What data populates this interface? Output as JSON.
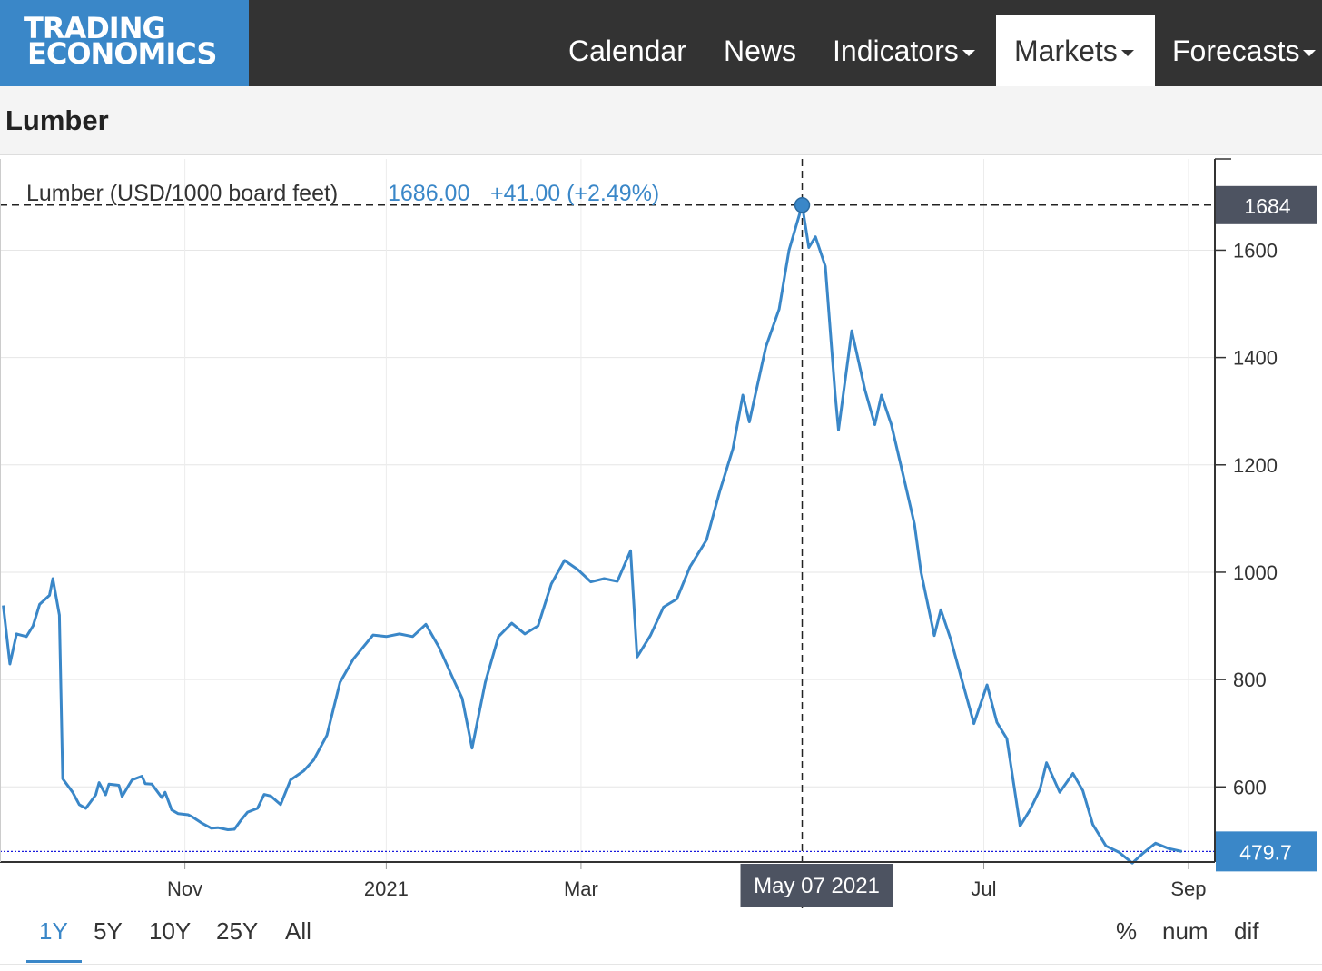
{
  "nav": {
    "logo_line1": "TRADING",
    "logo_line2": "ECONOMICS",
    "items": [
      {
        "label": "Calendar"
      },
      {
        "label": "News"
      },
      {
        "label": "Indicators"
      },
      {
        "label": "Markets"
      },
      {
        "label": "Forecasts"
      }
    ]
  },
  "page": {
    "title": "Lumber"
  },
  "tooltip": {
    "series_label": "Lumber (USD/1000 board feet)",
    "value": "1686.00",
    "change": "+41.00 (+2.49%)",
    "date": "May 07 2021",
    "crosshair_value": "1684",
    "last_value": "479.7"
  },
  "ranges": [
    "1Y",
    "5Y",
    "10Y",
    "25Y",
    "All"
  ],
  "active_range": "1Y",
  "modes": [
    "%",
    "num",
    "dif"
  ],
  "colors": {
    "line": "#3a87c8",
    "nav_bg": "#333333",
    "logo_bg": "#3a87c8",
    "crosshair_label_bg": "#4d5361",
    "last_label_bg": "#3a87c8"
  },
  "chart_data": {
    "type": "line",
    "x_tick_labels": [
      "Nov",
      "2021",
      "Mar",
      "Jul",
      "Sep"
    ],
    "x_ticks": [
      "2020-11-01",
      "2021-01-01",
      "2021-03-01",
      "2021-07-01",
      "2021-09-01"
    ],
    "y_ticks": [
      600,
      800,
      1000,
      1200,
      1400,
      1600
    ],
    "ylim": [
      460,
      1770
    ],
    "xlim": [
      "2020-09-06",
      "2021-09-09"
    ],
    "grid": true,
    "series": [
      {
        "name": "Lumber",
        "points": [
          [
            "2020-09-07",
            938
          ],
          [
            "2020-09-09",
            829
          ],
          [
            "2020-09-11",
            885
          ],
          [
            "2020-09-14",
            880
          ],
          [
            "2020-09-16",
            900
          ],
          [
            "2020-09-18",
            940
          ],
          [
            "2020-09-21",
            957
          ],
          [
            "2020-09-22",
            988
          ],
          [
            "2020-09-24",
            920
          ],
          [
            "2020-09-25",
            615
          ],
          [
            "2020-09-28",
            590
          ],
          [
            "2020-09-30",
            567
          ],
          [
            "2020-10-02",
            560
          ],
          [
            "2020-10-05",
            585
          ],
          [
            "2020-10-06",
            608
          ],
          [
            "2020-10-08",
            585
          ],
          [
            "2020-10-09",
            605
          ],
          [
            "2020-10-12",
            603
          ],
          [
            "2020-10-13",
            582
          ],
          [
            "2020-10-15",
            603
          ],
          [
            "2020-10-16",
            613
          ],
          [
            "2020-10-19",
            620
          ],
          [
            "2020-10-20",
            606
          ],
          [
            "2020-10-22",
            605
          ],
          [
            "2020-10-25",
            580
          ],
          [
            "2020-10-26",
            590
          ],
          [
            "2020-10-28",
            557
          ],
          [
            "2020-10-30",
            550
          ],
          [
            "2020-11-02",
            548
          ],
          [
            "2020-11-03",
            545
          ],
          [
            "2020-11-05",
            537
          ],
          [
            "2020-11-06",
            533
          ],
          [
            "2020-11-09",
            523
          ],
          [
            "2020-11-11",
            524
          ],
          [
            "2020-11-14",
            520
          ],
          [
            "2020-11-16",
            521
          ],
          [
            "2020-11-18",
            538
          ],
          [
            "2020-11-20",
            553
          ],
          [
            "2020-11-23",
            560
          ],
          [
            "2020-11-25",
            586
          ],
          [
            "2020-11-27",
            583
          ],
          [
            "2020-11-30",
            567
          ],
          [
            "2020-12-03",
            613
          ],
          [
            "2020-12-07",
            630
          ],
          [
            "2020-12-10",
            650
          ],
          [
            "2020-12-14",
            696
          ],
          [
            "2020-12-18",
            795
          ],
          [
            "2020-12-22",
            838
          ],
          [
            "2020-12-28",
            883
          ],
          [
            "2021-01-01",
            880
          ],
          [
            "2021-01-05",
            885
          ],
          [
            "2021-01-09",
            880
          ],
          [
            "2021-01-13",
            903
          ],
          [
            "2021-01-17",
            860
          ],
          [
            "2021-01-21",
            805
          ],
          [
            "2021-01-24",
            765
          ],
          [
            "2021-01-27",
            672
          ],
          [
            "2021-01-31",
            795
          ],
          [
            "2021-02-04",
            880
          ],
          [
            "2021-02-08",
            905
          ],
          [
            "2021-02-12",
            885
          ],
          [
            "2021-02-16",
            900
          ],
          [
            "2021-02-20",
            978
          ],
          [
            "2021-02-24",
            1022
          ],
          [
            "2021-02-28",
            1005
          ],
          [
            "2021-03-04",
            982
          ],
          [
            "2021-03-08",
            988
          ],
          [
            "2021-03-12",
            983
          ],
          [
            "2021-03-16",
            1040
          ],
          [
            "2021-03-18",
            842
          ],
          [
            "2021-03-22",
            882
          ],
          [
            "2021-03-26",
            935
          ],
          [
            "2021-03-30",
            950
          ],
          [
            "2021-04-03",
            1010
          ],
          [
            "2021-04-08",
            1060
          ],
          [
            "2021-04-12",
            1150
          ],
          [
            "2021-04-16",
            1230
          ],
          [
            "2021-04-19",
            1330
          ],
          [
            "2021-04-21",
            1280
          ],
          [
            "2021-04-26",
            1420
          ],
          [
            "2021-04-30",
            1490
          ],
          [
            "2021-05-03",
            1600
          ],
          [
            "2021-05-07",
            1684
          ],
          [
            "2021-05-09",
            1605
          ],
          [
            "2021-05-11",
            1625
          ],
          [
            "2021-05-14",
            1570
          ],
          [
            "2021-05-17",
            1330
          ],
          [
            "2021-05-18",
            1265
          ],
          [
            "2021-05-22",
            1450
          ],
          [
            "2021-05-26",
            1340
          ],
          [
            "2021-05-29",
            1275
          ],
          [
            "2021-05-31",
            1330
          ],
          [
            "2021-06-03",
            1275
          ],
          [
            "2021-06-07",
            1170
          ],
          [
            "2021-06-10",
            1090
          ],
          [
            "2021-06-12",
            1000
          ],
          [
            "2021-06-16",
            882
          ],
          [
            "2021-06-18",
            930
          ],
          [
            "2021-06-21",
            875
          ],
          [
            "2021-06-25",
            785
          ],
          [
            "2021-06-28",
            718
          ],
          [
            "2021-07-02",
            790
          ],
          [
            "2021-07-05",
            720
          ],
          [
            "2021-07-08",
            690
          ],
          [
            "2021-07-12",
            527
          ],
          [
            "2021-07-15",
            557
          ],
          [
            "2021-07-18",
            595
          ],
          [
            "2021-07-20",
            645
          ],
          [
            "2021-07-24",
            590
          ],
          [
            "2021-07-28",
            625
          ],
          [
            "2021-07-31",
            593
          ],
          [
            "2021-08-03",
            530
          ],
          [
            "2021-08-07",
            490
          ],
          [
            "2021-08-11",
            478
          ],
          [
            "2021-08-15",
            458
          ],
          [
            "2021-08-18",
            475
          ],
          [
            "2021-08-22",
            495
          ],
          [
            "2021-08-26",
            485
          ],
          [
            "2021-08-30",
            479.7
          ]
        ]
      }
    ],
    "highlight": {
      "x": "2021-05-07",
      "y": 1684
    },
    "last_value": 479.7
  }
}
